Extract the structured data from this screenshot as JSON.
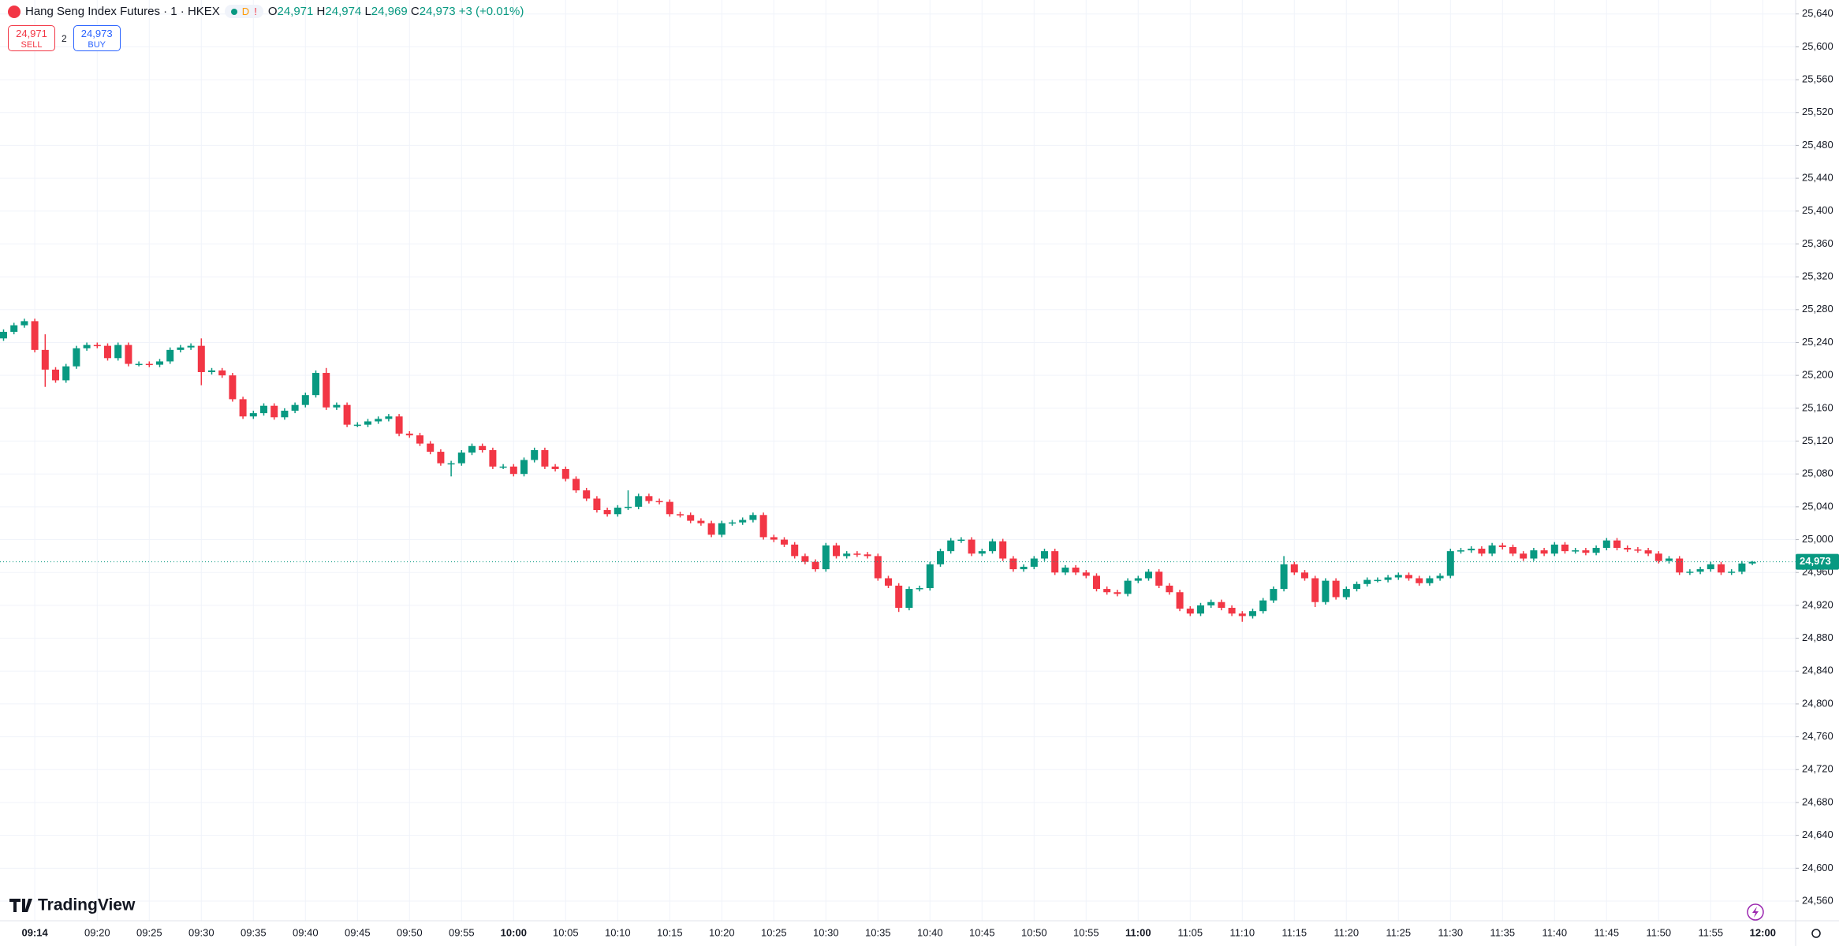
{
  "header": {
    "symbol": "Hang Seng Index Futures · 1 · HKEX",
    "badge": "D",
    "alert": "!",
    "o_label": "O",
    "open": "24,971",
    "h_label": "H",
    "high": "24,974",
    "l_label": "L",
    "low": "24,969",
    "c_label": "C",
    "close": "24,973",
    "change": "+3 (+0.01%)"
  },
  "trade": {
    "sell_price": "24,971",
    "sell": "SELL",
    "spread": "2",
    "buy_price": "24,973",
    "buy": "BUY"
  },
  "brand": "TradingView",
  "chart_data": {
    "type": "candlestick",
    "categories": [
      null,
      null,
      null,
      "09:14",
      null,
      null,
      null,
      null,
      null,
      "09:20",
      null,
      null,
      null,
      null,
      "09:25",
      null,
      null,
      null,
      null,
      "09:30",
      null,
      null,
      null,
      null,
      "09:35",
      null,
      null,
      null,
      null,
      "09:40",
      null,
      null,
      null,
      null,
      "09:45",
      null,
      null,
      null,
      null,
      "09:50",
      null,
      null,
      null,
      null,
      "09:55",
      null,
      null,
      null,
      null,
      "10:00",
      null,
      null,
      null,
      null,
      "10:05",
      null,
      null,
      null,
      null,
      "10:10",
      null,
      null,
      null,
      null,
      "10:15",
      null,
      null,
      null,
      null,
      "10:20",
      null,
      null,
      null,
      null,
      "10:25",
      null,
      null,
      null,
      null,
      "10:30",
      null,
      null,
      null,
      null,
      "10:35",
      null,
      null,
      null,
      null,
      "10:40",
      null,
      null,
      null,
      null,
      "10:45",
      null,
      null,
      null,
      null,
      "10:50",
      null,
      null,
      null,
      null,
      "10:55",
      null,
      null,
      null,
      null,
      "11:00",
      null,
      null,
      null,
      null,
      "11:05",
      null,
      null,
      null,
      null,
      "11:10",
      null,
      null,
      null,
      null,
      "11:15",
      null,
      null,
      null,
      null,
      "11:20",
      null,
      null,
      null,
      null,
      "11:25",
      null,
      null,
      null,
      null,
      "11:30",
      null,
      null,
      null,
      null,
      "11:35",
      null,
      null,
      null,
      null,
      "11:40",
      null,
      null,
      null,
      null,
      "11:45",
      null,
      null,
      null,
      null,
      "11:50",
      null,
      null,
      null,
      null,
      "11:55",
      null,
      null,
      null,
      null,
      "12:00"
    ],
    "open": [
      25245,
      25253,
      25261,
      25266,
      25231,
      25207,
      25194,
      25211,
      25233,
      25237,
      25236,
      25221,
      25237,
      25214,
      25214,
      25213,
      25217,
      25231,
      25234,
      25236,
      25204,
      25206,
      25200,
      25171,
      25150,
      25154,
      25163,
      25149,
      25157,
      25164,
      25176,
      25203,
      25161,
      25164,
      25140,
      25140,
      25144,
      25147,
      25150,
      25129,
      25127,
      25117,
      25107,
      25093,
      25093,
      25106,
      25114,
      25109,
      25089,
      25089,
      25080,
      25097,
      25109,
      25089,
      25086,
      25074,
      25060,
      25050,
      25036,
      25031,
      25039,
      25040,
      25053,
      25047,
      25046,
      25031,
      25030,
      25023,
      25020,
      25006,
      25020,
      25021,
      25024,
      25030,
      25003,
      25000,
      24994,
      24980,
      24973,
      24964,
      24993,
      24980,
      24983,
      24982,
      24980,
      24953,
      24944,
      24917,
      24940,
      24941,
      24970,
      24986,
      24999,
      25000,
      24983,
      24986,
      24998,
      24977,
      24964,
      24967,
      24977,
      24986,
      24960,
      24966,
      24960,
      24956,
      24940,
      24936,
      24934,
      24950,
      24953,
      24961,
      24944,
      24936,
      24916,
      24910,
      24920,
      24924,
      24917,
      24910,
      24907,
      24913,
      24926,
      24940,
      24970,
      24960,
      24953,
      24924,
      24950,
      24930,
      24940,
      24946,
      24951,
      24951,
      24954,
      24957,
      24953,
      24947,
      24953,
      24956,
      24986,
      24987,
      24989,
      24983,
      24993,
      24991,
      24983,
      24977,
      24987,
      24983,
      24994,
      24986,
      24987,
      24984,
      24990,
      24999,
      24990,
      24988,
      24987,
      24983,
      24974,
      24977,
      24960,
      24961,
      24964,
      24970,
      24960,
      24961,
      24971,
      null
    ],
    "high": [
      25256,
      25264,
      25269,
      25269,
      25250,
      25210,
      25214,
      25236,
      25240,
      25240,
      25239,
      25240,
      25240,
      25217,
      25217,
      25220,
      25234,
      25237,
      25239,
      25245,
      25209,
      25209,
      25203,
      25174,
      25157,
      25166,
      25166,
      25160,
      25167,
      25179,
      25206,
      25209,
      25167,
      25167,
      25143,
      25147,
      25150,
      25153,
      25153,
      25132,
      25130,
      25120,
      25110,
      25096,
      25109,
      25117,
      25117,
      25112,
      25092,
      25092,
      25100,
      25112,
      25112,
      25092,
      25089,
      25077,
      25063,
      25053,
      25039,
      25042,
      25060,
      25056,
      25056,
      25050,
      25049,
      25034,
      25033,
      25026,
      25023,
      25023,
      25024,
      25027,
      25033,
      25033,
      25006,
      25003,
      24997,
      24983,
      24976,
      24996,
      24996,
      24986,
      24986,
      24985,
      24983,
      24956,
      24947,
      24943,
      24944,
      24973,
      24989,
      25002,
      25003,
      25003,
      24989,
      25001,
      25001,
      24980,
      24970,
      24980,
      24989,
      24989,
      24969,
      24969,
      24963,
      24959,
      24943,
      24939,
      24953,
      24956,
      24964,
      24964,
      24947,
      24939,
      24919,
      24923,
      24927,
      24927,
      24920,
      24913,
      24916,
      24929,
      24943,
      24980,
      24973,
      24963,
      24956,
      24953,
      24953,
      24943,
      24949,
      24954,
      24954,
      24957,
      24960,
      24960,
      24956,
      24956,
      24959,
      24989,
      24990,
      24992,
      24992,
      24996,
      24996,
      24994,
      24986,
      24990,
      24990,
      24997,
      24997,
      24990,
      24990,
      24993,
      25002,
      25002,
      24993,
      24991,
      24990,
      24986,
      24980,
      24980,
      24964,
      24967,
      24973,
      24973,
      24964,
      24974,
      24974,
      null
    ],
    "low": [
      25242,
      25250,
      25258,
      25228,
      25186,
      25191,
      25191,
      25208,
      25230,
      25233,
      25218,
      25218,
      25211,
      25211,
      25210,
      25210,
      25214,
      25228,
      25231,
      25188,
      25201,
      25197,
      25168,
      25147,
      25147,
      25151,
      25146,
      25146,
      25154,
      25161,
      25173,
      25158,
      25158,
      25137,
      25137,
      25137,
      25141,
      25144,
      25126,
      25124,
      25114,
      25104,
      25090,
      25077,
      25090,
      25103,
      25106,
      25086,
      25086,
      25077,
      25077,
      25094,
      25086,
      25083,
      25071,
      25057,
      25047,
      25033,
      25028,
      25028,
      25036,
      25037,
      25044,
      25043,
      25028,
      25027,
      25020,
      25017,
      25003,
      25003,
      25017,
      25018,
      25021,
      25000,
      24997,
      24991,
      24977,
      24970,
      24961,
      24961,
      24977,
      24977,
      24979,
      24977,
      24950,
      24941,
      24912,
      24914,
      24937,
      24938,
      24967,
      24983,
      24996,
      24980,
      24980,
      24983,
      24974,
      24961,
      24961,
      24964,
      24974,
      24957,
      24957,
      24957,
      24953,
      24937,
      24933,
      24931,
      24931,
      24947,
      24950,
      24941,
      24933,
      24913,
      24907,
      24907,
      24917,
      24914,
      24907,
      24900,
      24904,
      24910,
      24923,
      24937,
      24957,
      24950,
      24918,
      24921,
      24927,
      24927,
      24937,
      24943,
      24948,
      24948,
      24951,
      24950,
      24944,
      24944,
      24950,
      24953,
      24983,
      24984,
      24980,
      24980,
      24988,
      24980,
      24974,
      24974,
      24980,
      24980,
      24983,
      24983,
      24981,
      24981,
      24987,
      24987,
      24985,
      24984,
      24980,
      24971,
      24971,
      24957,
      24957,
      24958,
      24961,
      24957,
      24957,
      24958,
      24969,
      null
    ],
    "close": [
      25253,
      25261,
      25266,
      25231,
      25207,
      25194,
      25211,
      25233,
      25237,
      25236,
      25221,
      25237,
      25214,
      25214,
      25213,
      25217,
      25231,
      25234,
      25236,
      25204,
      25206,
      25200,
      25171,
      25150,
      25154,
      25163,
      25149,
      25157,
      25164,
      25176,
      25203,
      25161,
      25164,
      25140,
      25140,
      25144,
      25147,
      25150,
      25129,
      25127,
      25117,
      25107,
      25093,
      25093,
      25106,
      25114,
      25109,
      25089,
      25089,
      25080,
      25097,
      25109,
      25089,
      25086,
      25074,
      25060,
      25050,
      25036,
      25031,
      25039,
      25040,
      25053,
      25047,
      25046,
      25031,
      25030,
      25023,
      25020,
      25006,
      25020,
      25021,
      25024,
      25030,
      25003,
      25000,
      24994,
      24980,
      24973,
      24964,
      24993,
      24980,
      24983,
      24982,
      24980,
      24953,
      24944,
      24917,
      24940,
      24941,
      24970,
      24986,
      24999,
      25000,
      24983,
      24986,
      24998,
      24977,
      24964,
      24967,
      24977,
      24986,
      24960,
      24966,
      24960,
      24956,
      24940,
      24936,
      24934,
      24950,
      24953,
      24961,
      24944,
      24936,
      24916,
      24910,
      24920,
      24924,
      24917,
      24910,
      24907,
      24913,
      24926,
      24940,
      24970,
      24960,
      24953,
      24924,
      24950,
      24930,
      24940,
      24946,
      24951,
      24951,
      24954,
      24957,
      24953,
      24947,
      24953,
      24956,
      24986,
      24987,
      24989,
      24983,
      24993,
      24991,
      24983,
      24977,
      24987,
      24983,
      24994,
      24986,
      24987,
      24984,
      24990,
      24999,
      24990,
      24988,
      24987,
      24983,
      24974,
      24977,
      24960,
      24961,
      24964,
      24970,
      24960,
      24961,
      24971,
      24973,
      null
    ],
    "up_color": "#089981",
    "down_color": "#f23645",
    "ylim": [
      24536,
      25657
    ],
    "yticks": [
      {
        "value": 24560,
        "label": "24,560"
      },
      {
        "value": 24600,
        "label": "24,600"
      },
      {
        "value": 24640,
        "label": "24,640"
      },
      {
        "value": 24680,
        "label": "24,680"
      },
      {
        "value": 24720,
        "label": "24,720"
      },
      {
        "value": 24760,
        "label": "24,760"
      },
      {
        "value": 24800,
        "label": "24,800"
      },
      {
        "value": 24840,
        "label": "24,840"
      },
      {
        "value": 24880,
        "label": "24,880"
      },
      {
        "value": 24920,
        "label": "24,920"
      },
      {
        "value": 24960,
        "label": "24,960"
      },
      {
        "value": 25000,
        "label": "25,000"
      },
      {
        "value": 25040,
        "label": "25,040"
      },
      {
        "value": 25080,
        "label": "25,080"
      },
      {
        "value": 25120,
        "label": "25,120"
      },
      {
        "value": 25160,
        "label": "25,160"
      },
      {
        "value": 25200,
        "label": "25,200"
      },
      {
        "value": 25240,
        "label": "25,240"
      },
      {
        "value": 25280,
        "label": "25,280"
      },
      {
        "value": 25320,
        "label": "25,320"
      },
      {
        "value": 25360,
        "label": "25,360"
      },
      {
        "value": 25400,
        "label": "25,400"
      },
      {
        "value": 25440,
        "label": "25,440"
      },
      {
        "value": 25480,
        "label": "25,480"
      },
      {
        "value": 25520,
        "label": "25,520"
      },
      {
        "value": 25560,
        "label": "25,560"
      },
      {
        "value": 25600,
        "label": "25,600"
      },
      {
        "value": 25640,
        "label": "25,640"
      }
    ],
    "grid": true,
    "last_price": {
      "value": 24973,
      "label": "24,973"
    }
  }
}
